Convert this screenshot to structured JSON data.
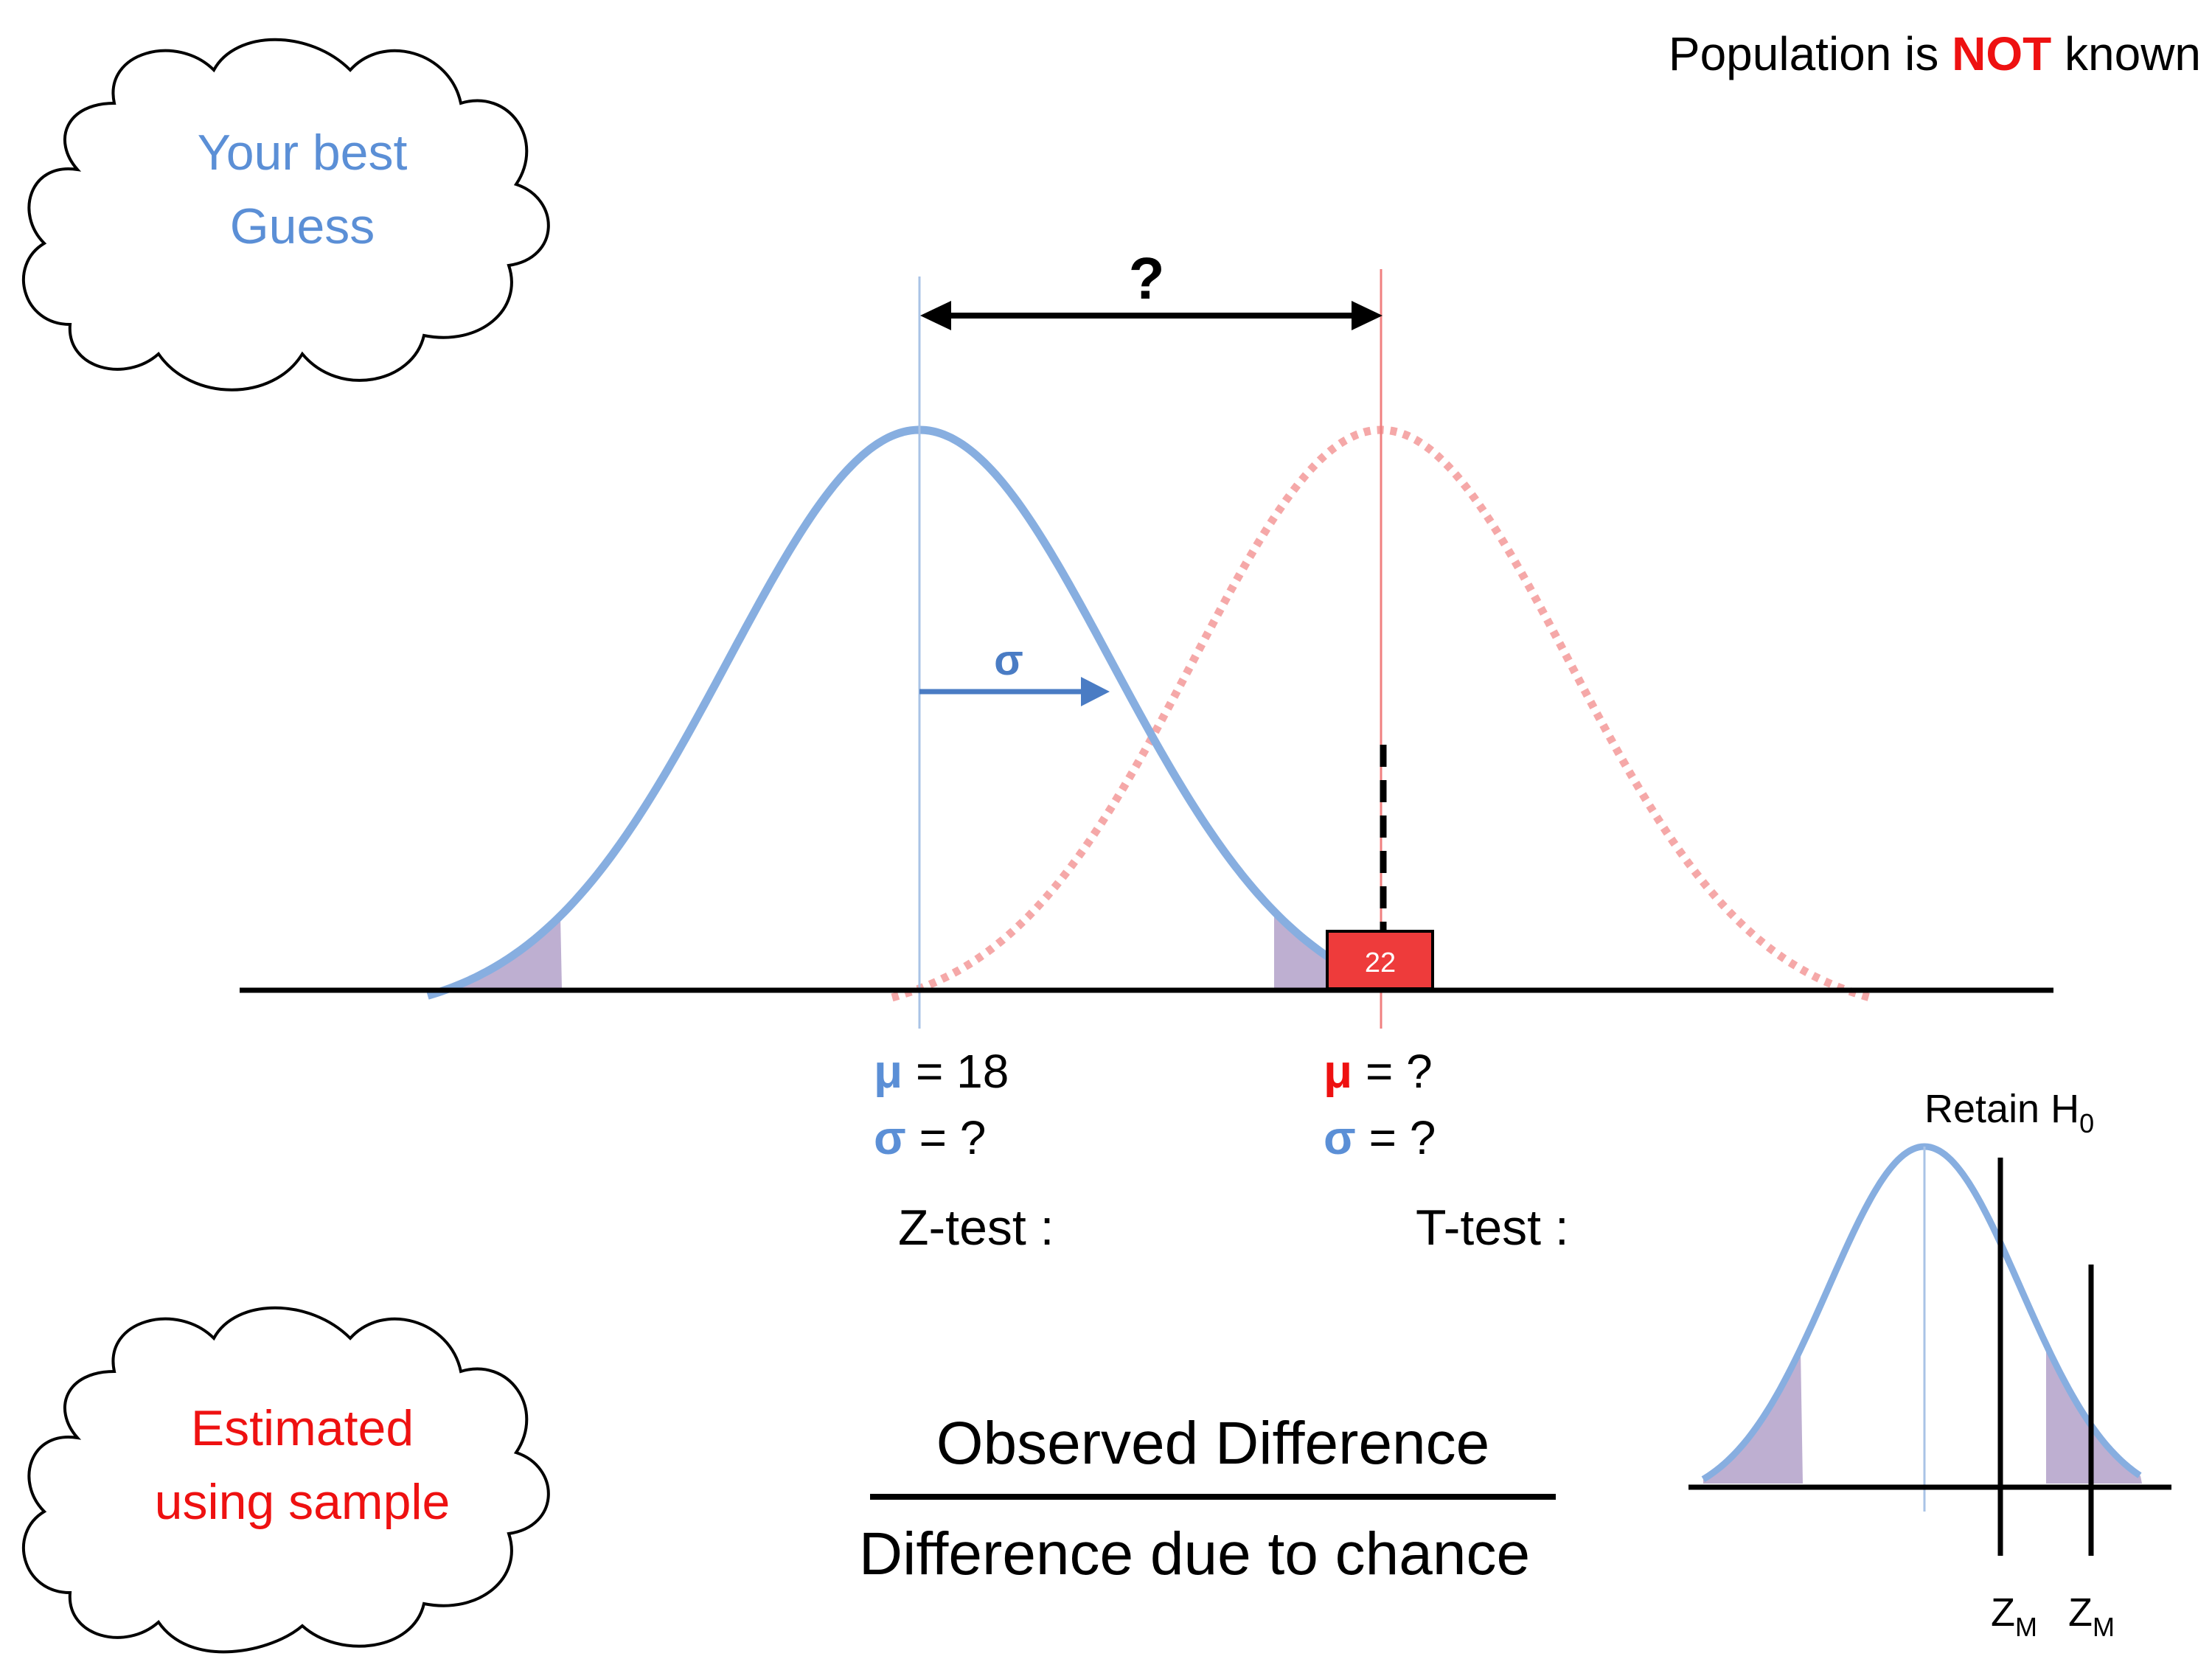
{
  "header": {
    "prefix": "Population is ",
    "emphasis": "NOT",
    "suffix": " known"
  },
  "clouds": {
    "top": {
      "line1": "Your best",
      "line2": "Guess"
    },
    "bottom": {
      "line1": "Estimated",
      "line2": "using sample"
    }
  },
  "main_chart": {
    "distance_label": "?",
    "sigma_label": "σ",
    "sample_value": "22",
    "left_params": {
      "mu_symbol": "μ",
      "mu_value": " = 18",
      "sigma_symbol": "σ",
      "sigma_value": " = ?"
    },
    "right_params": {
      "mu_symbol": "μ",
      "mu_value": " = ?",
      "sigma_symbol": "σ",
      "sigma_value": " = ?"
    }
  },
  "tests": {
    "z_label": "Z-test :",
    "t_label": "T-test :"
  },
  "formula": {
    "numerator": "Observed Difference",
    "denominator": "Difference due to chance"
  },
  "mini_chart": {
    "retain_label": "Retain H",
    "retain_sub": "0",
    "zm_label": "Z",
    "zm_sub": "M"
  },
  "colors": {
    "blue_text": "#5b8fd6",
    "blue_curve": "#87aee0",
    "red_text": "#ee1111",
    "red_dotted": "#f5a8a8",
    "tail_fill": "#b7a6cc",
    "sample_box": "#ee3b3b",
    "arrow_blue": "#4a7cc4"
  },
  "icons": [
    "cloud-shape",
    "double-arrow-icon",
    "right-arrow-icon"
  ]
}
